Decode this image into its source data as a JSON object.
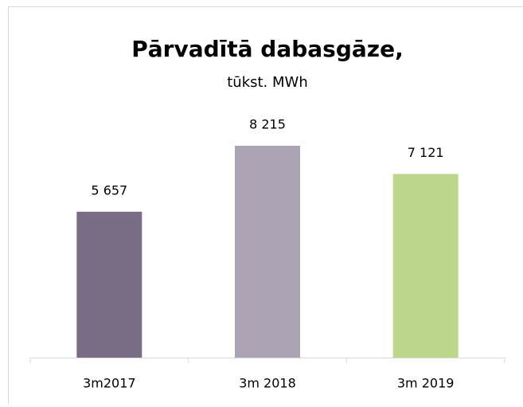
{
  "chart_data": {
    "type": "bar",
    "title": "Pārvadītā dabasgāze,",
    "subtitle": "tūkst. MWh",
    "categories": [
      "3m2017",
      "3m 2018",
      "3m 2019"
    ],
    "values": [
      5657,
      8215,
      7121
    ],
    "value_labels": [
      "5 657",
      "8 215",
      "7 121"
    ],
    "colors": [
      "#786d85",
      "#aca3b5",
      "#bcd68c"
    ]
  }
}
